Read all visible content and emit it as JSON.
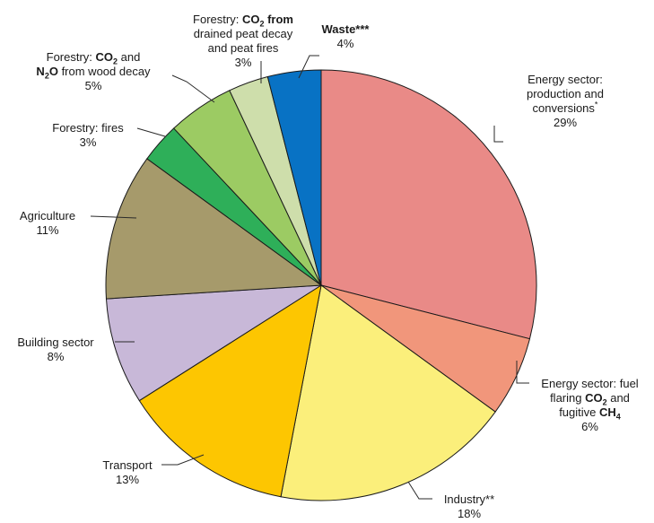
{
  "chart_data": {
    "type": "pie",
    "title": "",
    "unit": "%",
    "slices": [
      {
        "key": "energy_production",
        "value": 29,
        "color": "#E98A87",
        "label": "Energy sector: production and conversions*"
      },
      {
        "key": "energy_flaring",
        "value": 6,
        "color": "#F1967B",
        "label": "Energy sector: fuel flaring CO2 and fugitive CH4"
      },
      {
        "key": "industry",
        "value": 18,
        "color": "#FBEF7B",
        "label": "Industry**"
      },
      {
        "key": "transport",
        "value": 13,
        "color": "#FDC601",
        "label": "Transport"
      },
      {
        "key": "building",
        "value": 8,
        "color": "#C8B8D8",
        "label": "Building sector"
      },
      {
        "key": "agriculture",
        "value": 11,
        "color": "#A69A6B",
        "label": "Agriculture"
      },
      {
        "key": "forestry_fires",
        "value": 3,
        "color": "#2EAF59",
        "label": "Forestry: fires"
      },
      {
        "key": "forestry_wood_decay",
        "value": 5,
        "color": "#9CCB63",
        "label": "Forestry: CO2 and N2O from wood decay"
      },
      {
        "key": "forestry_peat",
        "value": 3,
        "color": "#CEDEAB",
        "label": "Forestry: CO2 from drained peat decay and peat fires"
      },
      {
        "key": "waste",
        "value": 4,
        "color": "#0872C4",
        "label": "Waste***"
      }
    ]
  },
  "labels": {
    "energy_production": {
      "l1": "Energy sector:",
      "l2": "production and",
      "l3": "conversions",
      "sup": "*",
      "pct": "29%"
    },
    "energy_flaring": {
      "l1": "Energy sector: fuel",
      "l2a": "flaring ",
      "l2b": "CO",
      "l2sub": "2",
      "l2c": " and",
      "l3a": "fugitive ",
      "l3b": "CH",
      "l3sub": "4",
      "pct": "6%"
    },
    "industry": {
      "l1": "Industry**",
      "pct": "18%"
    },
    "transport": {
      "l1": "Transport",
      "pct": "13%"
    },
    "building": {
      "l1": "Building sector",
      "pct": "8%"
    },
    "agriculture": {
      "l1": "Agriculture",
      "pct": "11%"
    },
    "forestry_fires": {
      "l1": "Forestry: fires",
      "pct": "3%"
    },
    "forestry_wood_decay": {
      "l1a": "Forestry: ",
      "l1b": "CO",
      "l1sub": "2",
      "l1c": "  and",
      "l2a": "N",
      "l2sub": "2",
      "l2b": "O",
      "l2c": " from wood decay",
      "pct": "5%"
    },
    "forestry_peat": {
      "l1a": "Forestry: ",
      "l1b": "CO",
      "l1sub": "2",
      "l1c": " from",
      "l2": "drained peat decay",
      "l3": "and peat fires",
      "pct": "3%"
    },
    "waste": {
      "l1": "Waste***",
      "pct": "4%"
    }
  }
}
